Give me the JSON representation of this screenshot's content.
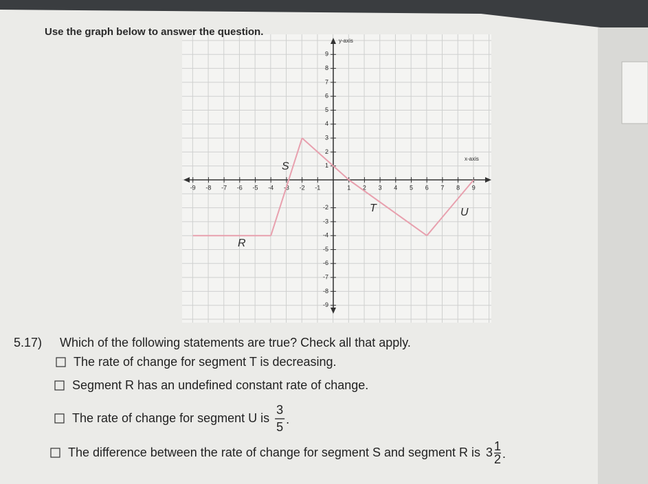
{
  "instruction": "Use the graph below to answer the question.",
  "graph": {
    "y_axis_label": "y-axis",
    "x_axis_label": "x-axis",
    "x_ticks": [
      -9,
      -8,
      -7,
      -6,
      -5,
      -4,
      -3,
      -2,
      -1,
      1,
      2,
      3,
      4,
      5,
      6,
      7,
      8,
      9
    ],
    "y_ticks": [
      9,
      8,
      7,
      6,
      5,
      4,
      3,
      2,
      1,
      -2,
      -3,
      -4,
      -5,
      -6,
      -7,
      -8,
      -9
    ],
    "path": [
      [
        -9,
        -4
      ],
      [
        -4,
        -4
      ],
      [
        -2,
        3
      ],
      [
        1,
        0
      ],
      [
        6,
        -4
      ],
      [
        9,
        0
      ]
    ],
    "segment_labels": [
      "R",
      "S",
      "T",
      "U"
    ]
  },
  "question": {
    "number": "5.17)",
    "text": "Which of the following statements are true? Check all that apply.",
    "options": [
      {
        "text": "The rate of change for segment T is decreasing."
      },
      {
        "text": "Segment R has an undefined constant rate of change."
      },
      {
        "text": "The rate of change for segment U is",
        "numerator": 3,
        "denominator": 5,
        "end": "."
      },
      {
        "text": "The difference between the rate of change for segment S and segment R is",
        "whole": 3,
        "numerator": 1,
        "denominator": 2,
        "end": "."
      }
    ]
  }
}
